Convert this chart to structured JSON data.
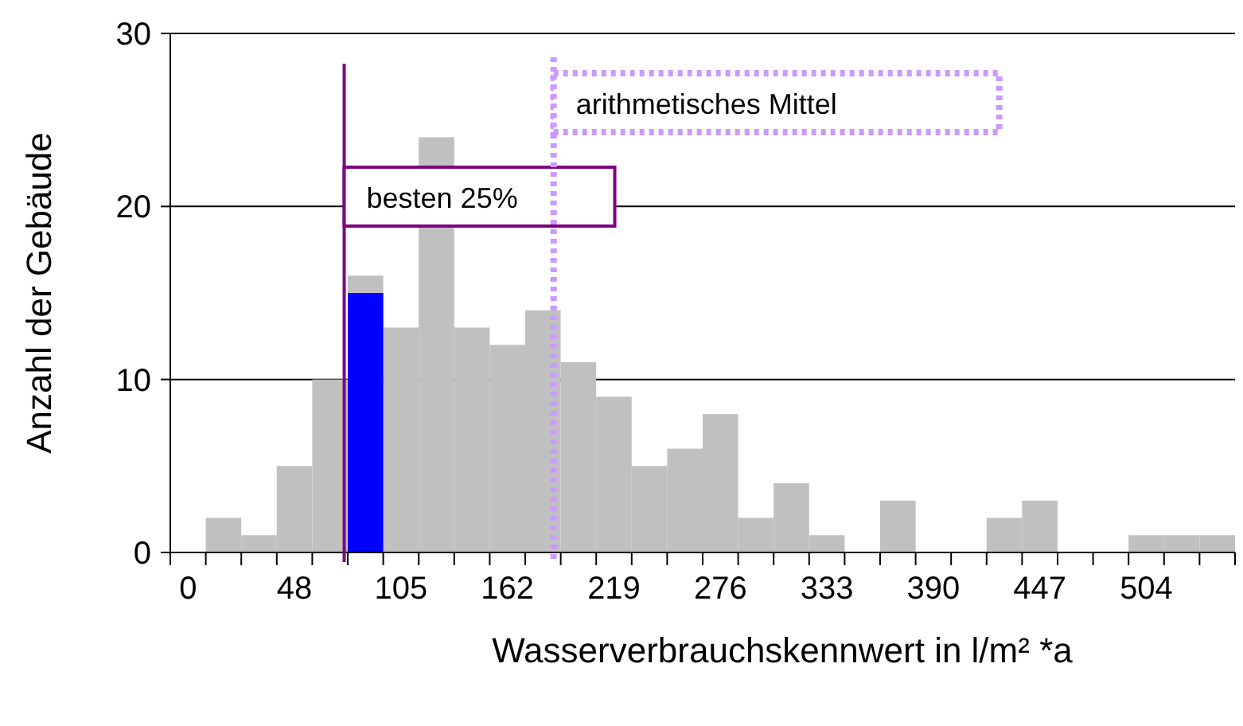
{
  "chart_data": {
    "type": "bar",
    "xlabel": "Wasserverbrauchskennwert in l/m² *a",
    "ylabel": "Anzahl der Gebäude",
    "categories": [
      "0",
      null,
      null,
      "48",
      null,
      null,
      "105",
      null,
      null,
      "162",
      null,
      null,
      "219",
      null,
      null,
      "276",
      null,
      null,
      "333",
      null,
      null,
      "390",
      null,
      null,
      "447",
      null,
      null,
      "504",
      null,
      null
    ],
    "series": [
      {
        "color": "#c0c0c0",
        "values": [
          0,
          2,
          1,
          5,
          10,
          16,
          13,
          24,
          13,
          12,
          14,
          11,
          9,
          5,
          6,
          8,
          2,
          4,
          1,
          0,
          3,
          0,
          0,
          2,
          3,
          0,
          0,
          1,
          1,
          1
        ]
      },
      {
        "color": "#0000ff",
        "values": [
          null,
          null,
          null,
          null,
          null,
          15,
          null,
          null,
          null,
          null,
          null,
          null,
          null,
          null,
          null,
          null,
          null,
          null,
          null,
          null,
          null,
          null,
          null,
          null,
          null,
          null,
          null,
          null,
          null,
          null
        ]
      }
    ],
    "ylim": [
      0,
      30
    ],
    "yticks": [
      0,
      10,
      20,
      30
    ],
    "grid": "y",
    "annotations": [
      "besten 25%",
      "arithmetisches Mittel"
    ]
  }
}
